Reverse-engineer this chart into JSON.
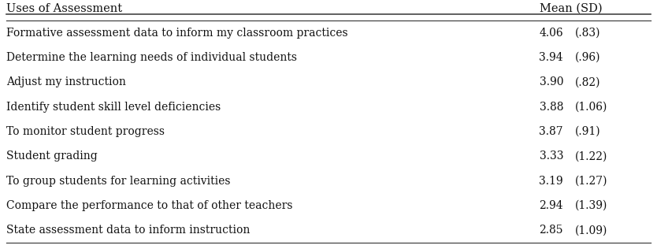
{
  "header_left": "Uses of Assessment",
  "header_right": "Mean (SD)",
  "rows": [
    {
      "label": "Formative assessment data to inform my classroom practices",
      "mean": "4.06",
      "sd": "(.83)"
    },
    {
      "label": "Determine the learning needs of individual students",
      "mean": "3.94",
      "sd": "(.96)"
    },
    {
      "label": "Adjust my instruction",
      "mean": "3.90",
      "sd": "(.82)"
    },
    {
      "label": "Identify student skill level deficiencies",
      "mean": "3.88",
      "sd": "(1.06)"
    },
    {
      "label": "To monitor student progress",
      "mean": "3.87",
      "sd": "(.91)"
    },
    {
      "label": "Student grading",
      "mean": "3.33",
      "sd": "(1.22)"
    },
    {
      "label": "To group students for learning activities",
      "mean": "3.19",
      "sd": "(1.27)"
    },
    {
      "label": "Compare the performance to that of other teachers",
      "mean": "2.94",
      "sd": "(1.39)"
    },
    {
      "label": "State assessment data to inform instruction",
      "mean": "2.85",
      "sd": "(1.09)"
    }
  ],
  "font_family": "DejaVu Serif",
  "font_size_header": 10.5,
  "font_size_body": 10.0,
  "bg_color": "#ffffff",
  "line_color": "#444444",
  "text_color": "#111111",
  "figsize": [
    8.34,
    3.16
  ],
  "dpi": 100
}
